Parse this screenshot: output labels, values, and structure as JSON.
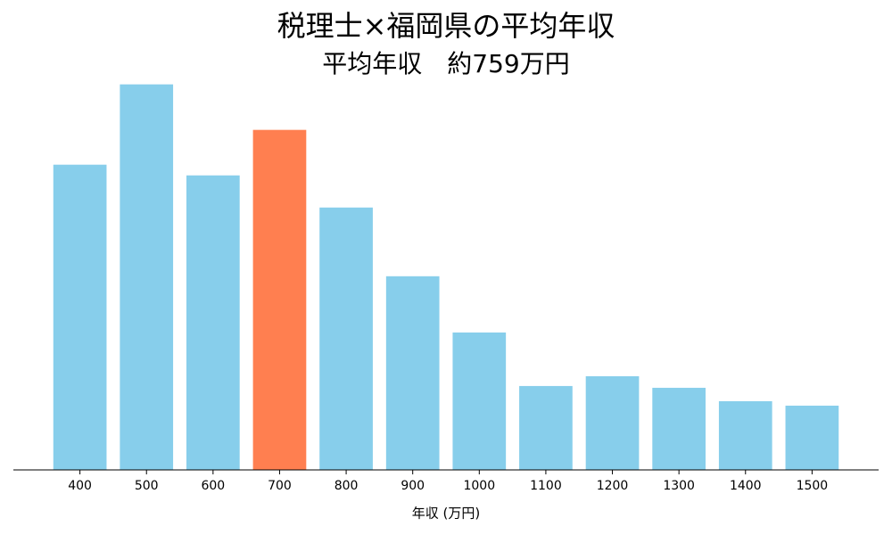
{
  "chart_data": {
    "type": "bar",
    "title": "税理士×福岡県の平均年収",
    "subtitle": "平均年収　約759万円",
    "x_label": "年収 (万円)",
    "categories": [
      "400",
      "500",
      "600",
      "700",
      "800",
      "900",
      "1000",
      "1100",
      "1200",
      "1300",
      "1400",
      "1500"
    ],
    "values": [
      342,
      432,
      330,
      381,
      294,
      217,
      154,
      94,
      105,
      92,
      77,
      72
    ],
    "colors": [
      "#87ceeb",
      "#87ceeb",
      "#87ceeb",
      "#ff7f50",
      "#87ceeb",
      "#87ceeb",
      "#87ceeb",
      "#87ceeb",
      "#87ceeb",
      "#87ceeb",
      "#87ceeb",
      "#87ceeb"
    ],
    "ylim": [
      0,
      453.6
    ]
  }
}
